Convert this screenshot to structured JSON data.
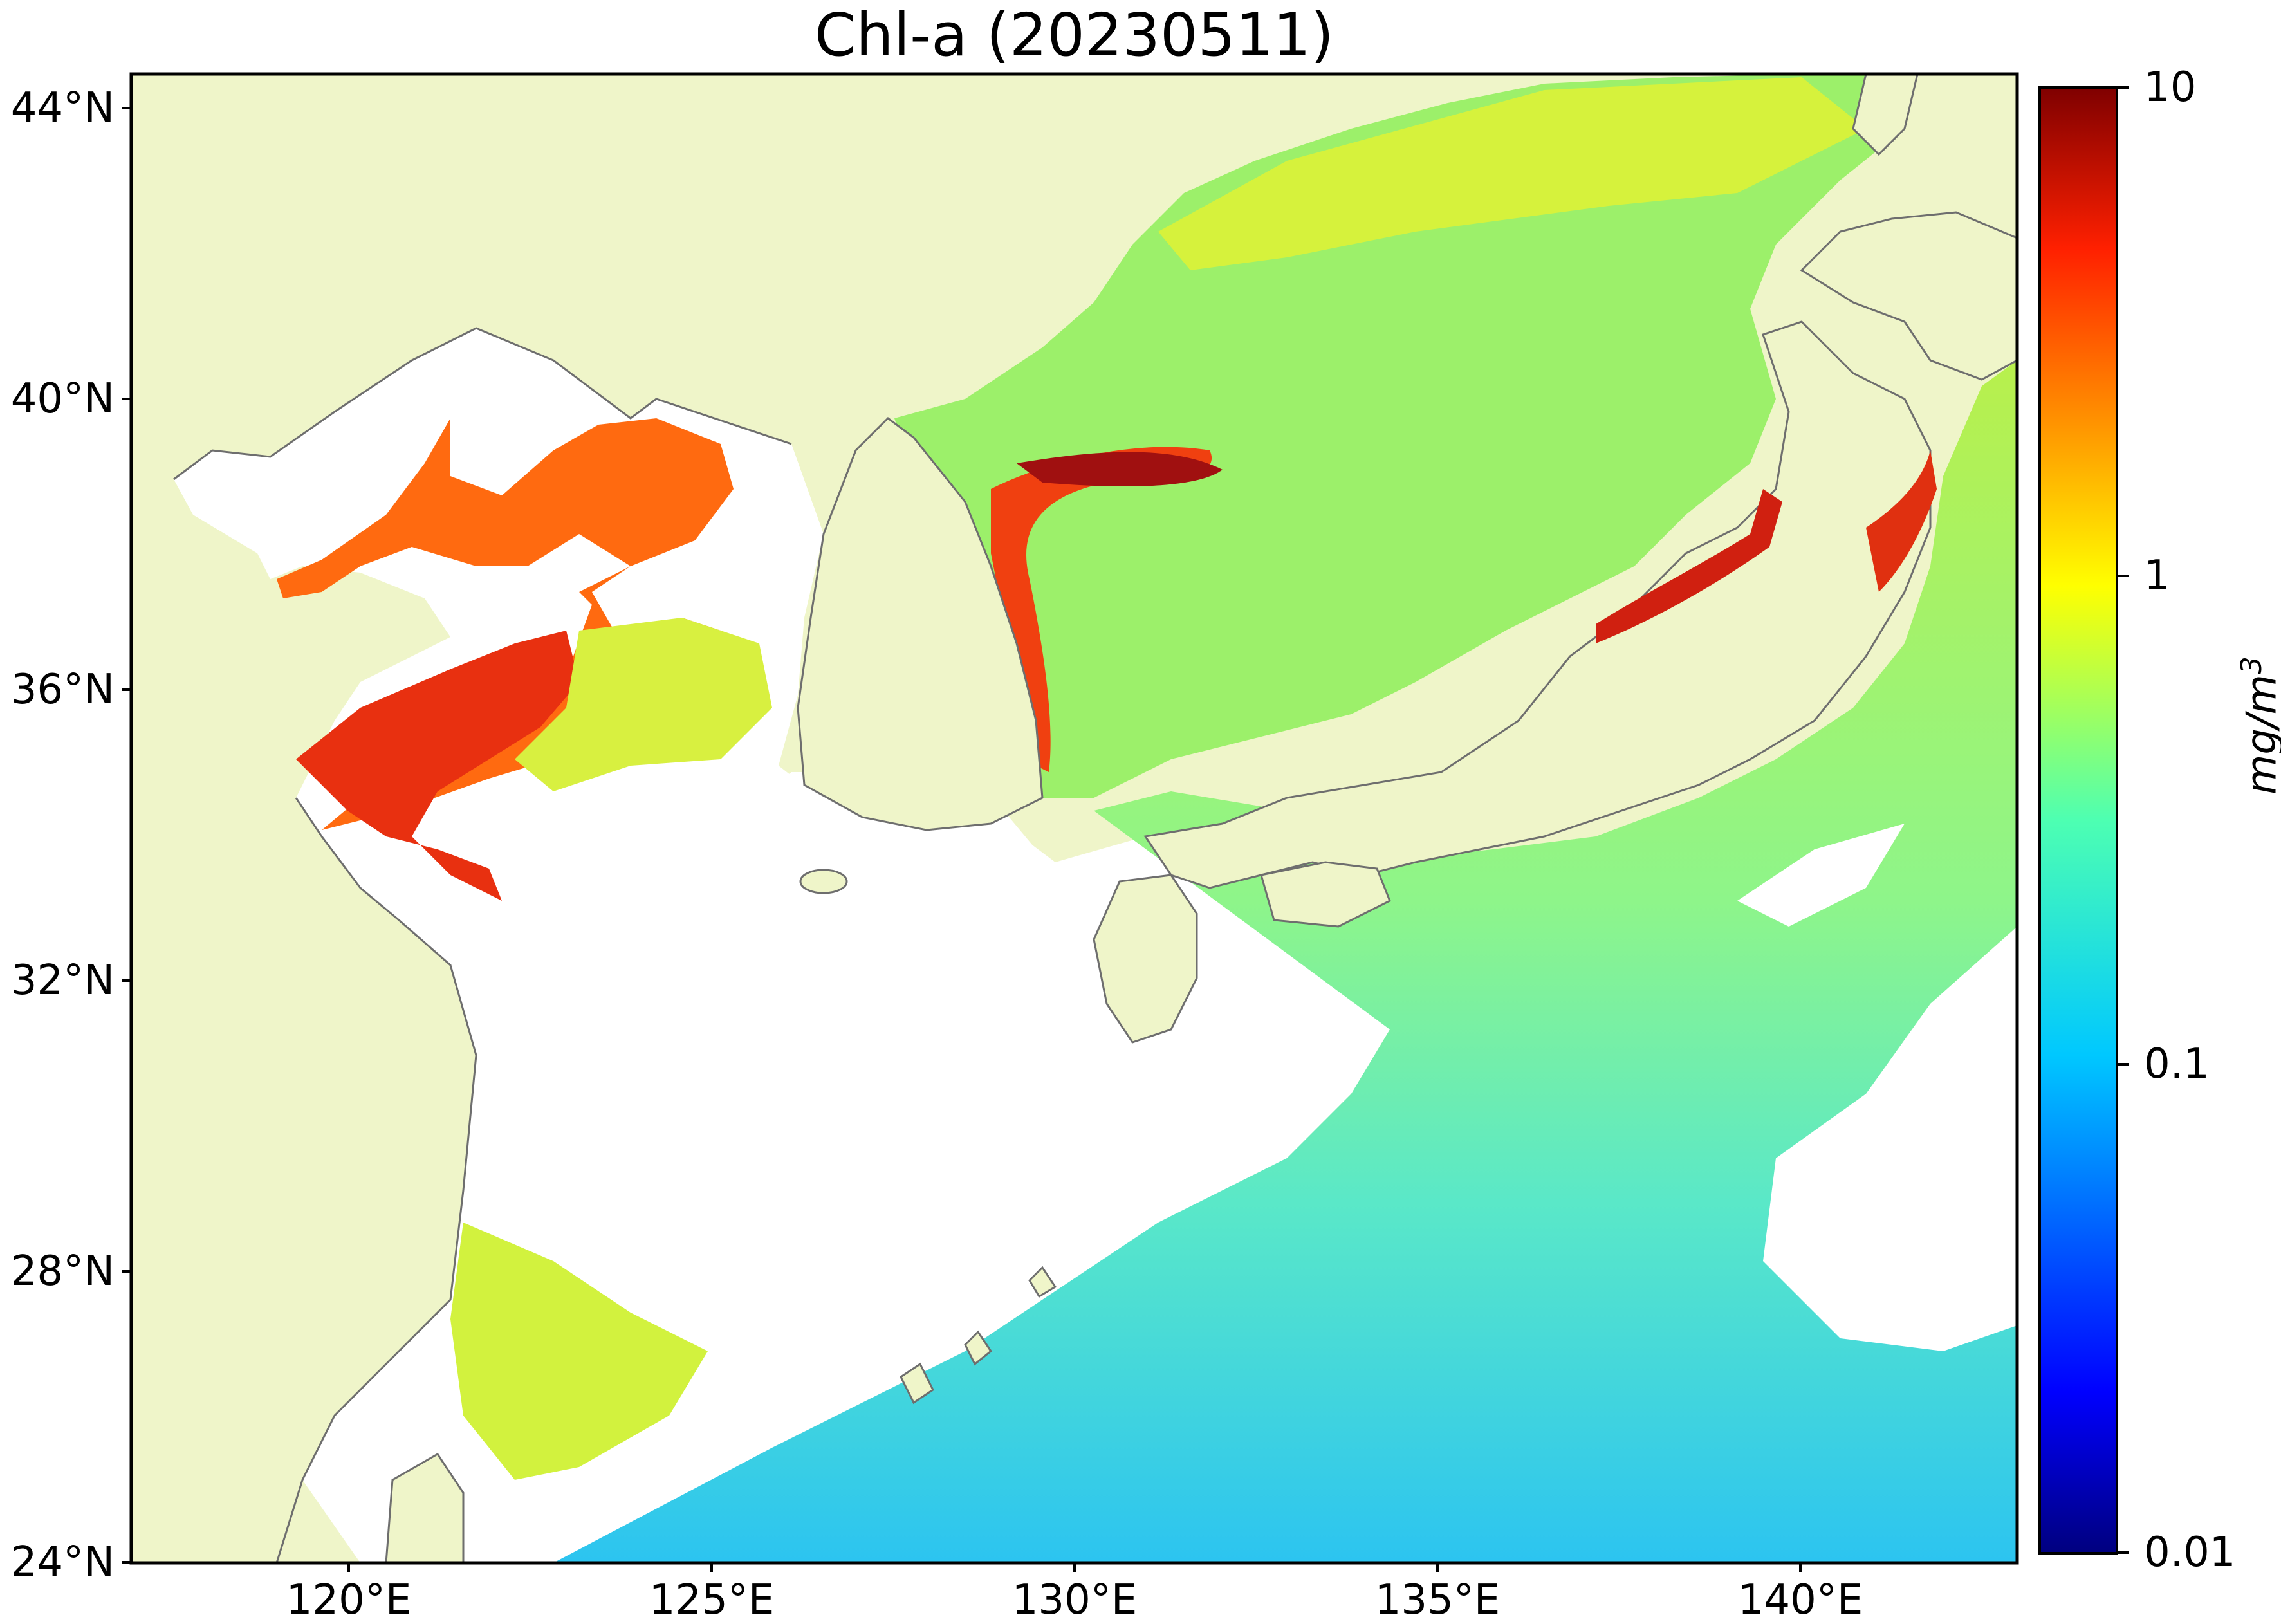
{
  "title": "Chl-a (20230511)",
  "map": {
    "region": "East China Sea, Yellow Sea, Sea of Japan, NW Pacific",
    "lat_range": [
      24,
      44.5
    ],
    "lon_range": [
      117,
      143
    ],
    "lat_ticks": [
      "44°N",
      "40°N",
      "36°N",
      "32°N",
      "28°N",
      "24°N"
    ],
    "lon_ticks": [
      "120°E",
      "125°E",
      "130°E",
      "135°E",
      "140°E"
    ],
    "land_color": "#eff5c9",
    "no_data_color": "#ffffff",
    "coast_color": "#6e6e6e"
  },
  "colorbar": {
    "scale": "log",
    "range": [
      0.01,
      10
    ],
    "colormap": "jet",
    "ticks": [
      "10",
      "1",
      "0.1",
      "0.01"
    ],
    "unit": "mg/m",
    "unit_exp": "3"
  }
}
